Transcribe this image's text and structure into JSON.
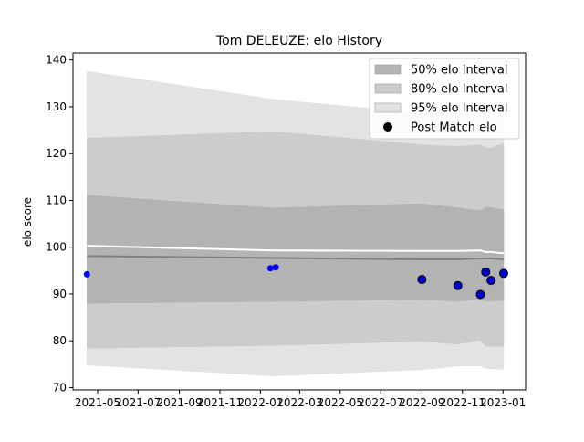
{
  "chart_data": {
    "type": "area",
    "title": "Tom DELEUZE: elo History",
    "xlabel": "",
    "ylabel": "elo score",
    "ylim": [
      69.5,
      141.5
    ],
    "xlim": [
      "2021-03-25",
      "2023-02-04"
    ],
    "yticks": [
      70,
      80,
      90,
      100,
      110,
      120,
      130,
      140
    ],
    "xticks": [
      "2021-05",
      "2021-07",
      "2021-09",
      "2021-11",
      "2022-01",
      "2022-03",
      "2022-05",
      "2022-07",
      "2022-09",
      "2022-11",
      "2023-01"
    ],
    "grid": false,
    "legend_position": "top-right",
    "legend": [
      {
        "label": "50% elo Interval",
        "kind": "band",
        "color": "#b3b3b3"
      },
      {
        "label": "80% elo Interval",
        "kind": "band",
        "color": "#cccccc"
      },
      {
        "label": "95% elo Interval",
        "kind": "band",
        "color": "#e3e3e3"
      },
      {
        "label": "Post Match elo",
        "kind": "marker",
        "color": "#000000"
      }
    ],
    "x": [
      "2021-04-15",
      "2022-01-20",
      "2022-09-01",
      "2022-10-25",
      "2022-11-28",
      "2022-12-06",
      "2022-12-14",
      "2023-01-02"
    ],
    "series": [
      {
        "name": "95% elo Interval",
        "role": "band",
        "color": "#e3e3e3",
        "lower": [
          74.8,
          72.5,
          73.8,
          74.6,
          74.6,
          74.1,
          74.0,
          73.9
        ],
        "upper": [
          137.6,
          131.6,
          128.6,
          128.4,
          128.3,
          128.3,
          128.2,
          128.2
        ]
      },
      {
        "name": "80% elo Interval",
        "role": "band",
        "color": "#cccccc",
        "lower": [
          78.4,
          79.0,
          79.9,
          79.3,
          80.2,
          78.8,
          78.8,
          78.8
        ],
        "upper": [
          123.3,
          124.7,
          121.9,
          121.5,
          121.9,
          121.3,
          121.2,
          122.2
        ]
      },
      {
        "name": "50% elo Interval",
        "role": "band",
        "color": "#b3b3b3",
        "lower": [
          88.0,
          88.4,
          88.8,
          88.4,
          88.9,
          88.5,
          88.5,
          88.6
        ],
        "upper": [
          111.1,
          108.4,
          109.3,
          108.4,
          107.8,
          108.6,
          108.5,
          108.0
        ]
      },
      {
        "name": "",
        "role": "line",
        "color": "#808080",
        "values": [
          98.1,
          97.7,
          97.4,
          97.4,
          97.6,
          97.6,
          97.6,
          97.4
        ]
      },
      {
        "name": "",
        "role": "line",
        "color": "#ffffff",
        "values": [
          100.3,
          99.3,
          99.2,
          99.2,
          99.3,
          99.0,
          99.0,
          98.7
        ]
      }
    ],
    "points_small": {
      "color": "#0000ff",
      "x": [
        "2021-04-15",
        "2022-01-16",
        "2022-01-24"
      ],
      "y": [
        94.2,
        95.5,
        95.7
      ]
    },
    "points_post_match": {
      "name": "Post Match elo",
      "fill": "#0000cc",
      "edge": "#000000",
      "x": [
        "2022-09-01",
        "2022-10-25",
        "2022-11-28",
        "2022-12-06",
        "2022-12-14",
        "2023-01-02"
      ],
      "y": [
        93.1,
        91.8,
        89.9,
        94.7,
        92.9,
        94.4
      ]
    }
  }
}
